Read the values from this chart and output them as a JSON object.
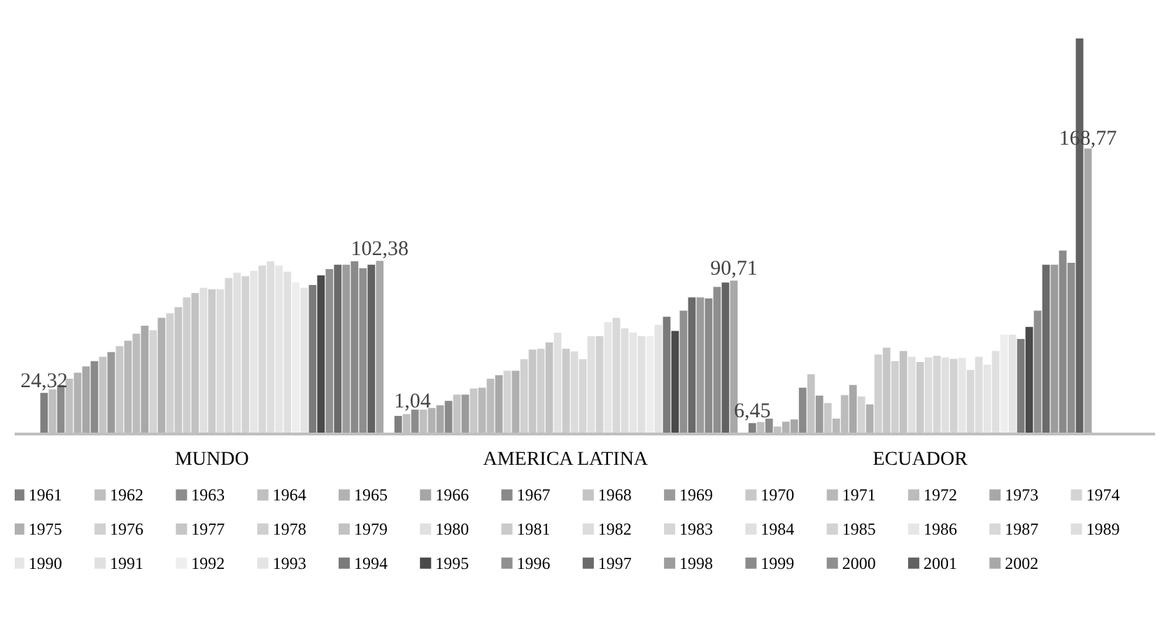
{
  "chart_data": {
    "type": "bar",
    "categories": [
      "MUNDO",
      "AMERICA LATINA",
      "ECUADOR"
    ],
    "series": [
      {
        "name": "1961",
        "color": "#7f7f7f",
        "values": [
          24.32,
          10.7,
          6.45
        ],
        "value_labels": [
          "24,32",
          null,
          "6,45"
        ]
      },
      {
        "name": "1962",
        "color": "#bfbfbf",
        "values": [
          26.4,
          11.8,
          7.1
        ]
      },
      {
        "name": "1963",
        "color": "#8c8c8c",
        "values": [
          29,
          14.4,
          9.1
        ]
      },
      {
        "name": "1964",
        "color": "#c0c0c0",
        "values": [
          32.7,
          14.4,
          4.4
        ]
      },
      {
        "name": "1965",
        "color": "#b2b2b2",
        "values": [
          36.3,
          15.4,
          7.3
        ]
      },
      {
        "name": "1966",
        "color": "#a6a6a6",
        "values": [
          40,
          17,
          8.6
        ]
      },
      {
        "name": "1967",
        "color": "#8a8a8a",
        "values": [
          43.1,
          19.6,
          27.4
        ]
      },
      {
        "name": "1968",
        "color": "#c4c4c4",
        "values": [
          45.7,
          23.3,
          35.3
        ]
      },
      {
        "name": "1969",
        "color": "#9a9a9a",
        "values": [
          48.4,
          23.3,
          22.7
        ]
      },
      {
        "name": "1970",
        "color": "#c8c8c8",
        "values": [
          52,
          26.9,
          18.3
        ]
      },
      {
        "name": "1971",
        "color": "#b8b8b8",
        "values": [
          55.2,
          27.4,
          9.1
        ]
      },
      {
        "name": "1972",
        "color": "#bcbcbc",
        "values": [
          59.3,
          32.7,
          23
        ]
      },
      {
        "name": "1973",
        "color": "#a8a8a8",
        "values": [
          64,
          34.8,
          29
        ]
      },
      {
        "name": "1974",
        "color": "#d4d4d4",
        "values": [
          61.4,
          37.4,
          22.2
        ]
      },
      {
        "name": "1975",
        "color": "#b0b0b0",
        "values": [
          68.7,
          37.4,
          17.5
        ]
      },
      {
        "name": "1976",
        "color": "#d0d0d0",
        "values": [
          71.4,
          44.2,
          47
        ]
      },
      {
        "name": "1977",
        "color": "#c6c6c6",
        "values": [
          75,
          49.9,
          51
        ]
      },
      {
        "name": "1978",
        "color": "#cfcfcf",
        "values": [
          80.8,
          50.4,
          43.1
        ]
      },
      {
        "name": "1979",
        "color": "#c2c2c2",
        "values": [
          83.4,
          54.1,
          49.1
        ]
      },
      {
        "name": "1980",
        "color": "#e0e0e0",
        "values": [
          86.5,
          59.9,
          45.7
        ]
      },
      {
        "name": "1981",
        "color": "#cacaca",
        "values": [
          85.5,
          50.4,
          42.6
        ]
      },
      {
        "name": "1982",
        "color": "#dcdcdc",
        "values": [
          85.5,
          48.9,
          45.2
        ]
      },
      {
        "name": "1983",
        "color": "#d6d6d6",
        "values": [
          92.3,
          44.2,
          46.3
        ]
      },
      {
        "name": "1984",
        "color": "#e0e0e0",
        "values": [
          95.4,
          57.8,
          45.2
        ]
      },
      {
        "name": "1985",
        "color": "#d2d2d2",
        "values": [
          93.3,
          57.8,
          44.4
        ]
      },
      {
        "name": "1986",
        "color": "#e6e6e6",
        "values": [
          96.5,
          66.1,
          45
        ]
      },
      {
        "name": "1987",
        "color": "#d8d8d8",
        "values": [
          99.6,
          68.7,
          37.9
        ]
      },
      {
        "name": "1989",
        "color": "#dedede",
        "values": [
          102.2,
          62.5,
          45.7
        ]
      },
      {
        "name": "1990",
        "color": "#e6e6e6",
        "values": [
          99.6,
          59.9,
          41
        ]
      },
      {
        "name": "1991",
        "color": "#e0e0e0",
        "values": [
          96,
          57.8,
          49.1
        ]
      },
      {
        "name": "1992",
        "color": "#eeeeee",
        "values": [
          89.7,
          57.8,
          58.8
        ]
      },
      {
        "name": "1993",
        "color": "#e4e4e4",
        "values": [
          86.5,
          64.6,
          58.8
        ]
      },
      {
        "name": "1994",
        "color": "#7a7a7a",
        "values": [
          88.1,
          69.3,
          56.2
        ]
      },
      {
        "name": "1995",
        "color": "#4a4a4a",
        "values": [
          93.8,
          60.9,
          63.3
        ]
      },
      {
        "name": "1996",
        "color": "#909090",
        "values": [
          97.5,
          72.9,
          72.9
        ]
      },
      {
        "name": "1997",
        "color": "#6a6a6a",
        "values": [
          100.1,
          80.8,
          100.1
        ]
      },
      {
        "name": "1998",
        "color": "#9c9c9c",
        "values": [
          100.1,
          80.8,
          100.1
        ]
      },
      {
        "name": "1999",
        "color": "#8a8a8a",
        "values": [
          102.2,
          80.2,
          108.5
        ]
      },
      {
        "name": "2000",
        "color": "#8e8e8e",
        "values": [
          98,
          87,
          101.2
        ]
      },
      {
        "name": "2001",
        "color": "#626262",
        "values": [
          100.1,
          89.6,
          233.9
        ]
      },
      {
        "name": "2002",
        "color": "#a8a8a8",
        "values": [
          102.38,
          90.71,
          168.77
        ],
        "value_labels": [
          "102,38",
          "90,71",
          "168,77"
        ]
      }
    ],
    "annotations": [
      "1,04"
    ],
    "legend": "bottom"
  }
}
